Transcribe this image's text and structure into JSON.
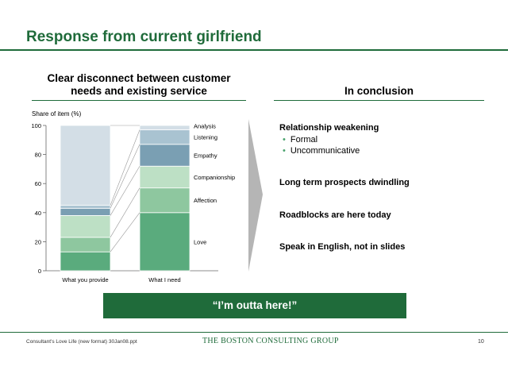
{
  "slide": {
    "title": "Response from current girlfriend",
    "left_heading_line1": "Clear disconnect between customer",
    "left_heading_line2": "needs and existing service",
    "right_heading": "In conclusion"
  },
  "chart_data": {
    "type": "bar",
    "stacked": true,
    "ylabel": "Share of item (%)",
    "ylim": [
      0,
      100
    ],
    "yticks": [
      0,
      20,
      40,
      60,
      80,
      100
    ],
    "categories": [
      "What you provide",
      "What I need"
    ],
    "series": [
      {
        "name": "Love",
        "values": [
          13,
          40
        ],
        "color": "#5aab7d"
      },
      {
        "name": "Affection",
        "values": [
          10,
          17
        ],
        "color": "#8ec79f"
      },
      {
        "name": "Companionship",
        "values": [
          15,
          15
        ],
        "color": "#bde0c5"
      },
      {
        "name": "Empathy",
        "values": [
          5,
          15
        ],
        "color": "#7a9fb3"
      },
      {
        "name": "Listening",
        "values": [
          2,
          10
        ],
        "color": "#a9c3d1"
      },
      {
        "name": "Analysis",
        "values": [
          55,
          3
        ],
        "color": "#d3dee6"
      }
    ]
  },
  "conclusions": {
    "c1": "Relationship weakening",
    "c1_bullets": [
      "Formal",
      "Uncommunicative"
    ],
    "c2": "Long term prospects dwindling",
    "c3": "Roadblocks are here today",
    "c4": "Speak in English, not in slides"
  },
  "banner": "“I’m outta here!”",
  "footer": {
    "left": "Consultant's Love Life (new format) 30Jan08.ppt",
    "logo": "THE BOSTON CONSULTING GROUP",
    "page": "10"
  },
  "colors": {
    "accent": "#1f6b3a",
    "arrow": "#b5b5b5"
  }
}
